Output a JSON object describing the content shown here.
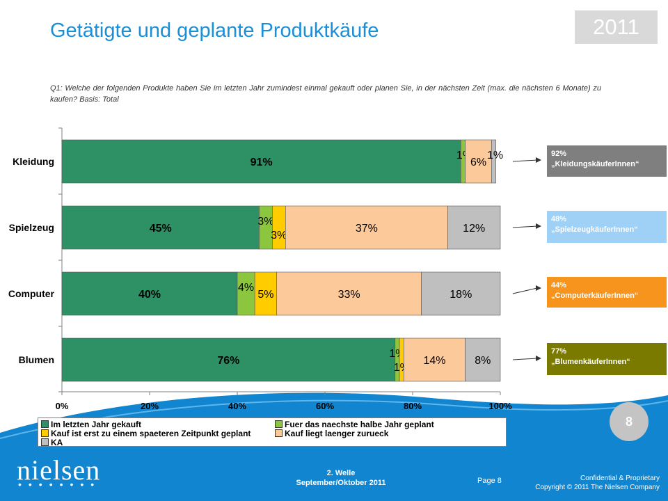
{
  "header": {
    "title": "Getätigte und geplante Produktkäufe",
    "year": "2011",
    "question": "Q1: Welche der folgenden Produkte haben Sie im letzten Jahr zumindest einmal gekauft oder planen Sie, in der nächsten Zeit (max. die nächsten 6 Monate) zu kaufen? Basis: Total"
  },
  "chart_data": {
    "type": "bar",
    "orientation": "horizontal",
    "stacked": true,
    "categories": [
      "Kleidung",
      "Spielzeug",
      "Computer",
      "Blumen"
    ],
    "series": [
      {
        "name": "Im letzten Jahr gekauft",
        "color": "#2e9166",
        "values": [
          91,
          45,
          40,
          76
        ],
        "labels": [
          "91%",
          "45%",
          "40%",
          "76%"
        ]
      },
      {
        "name": "Fuer das naechste  halbe Jahr geplant",
        "color": "#8cc63f",
        "values": [
          1,
          3,
          4,
          1
        ],
        "labels": [
          "1%",
          "3%",
          "4%",
          "1%"
        ]
      },
      {
        "name": "Kauf ist erst zu einem spaeteren Zeitpunkt geplant",
        "color": "#ffcc00",
        "values": [
          0,
          3,
          5,
          1
        ],
        "labels": [
          "",
          "3%",
          "5%",
          "1%"
        ]
      },
      {
        "name": "Kauf liegt laenger zurueck",
        "color": "#fcc99a",
        "values": [
          6,
          37,
          33,
          14
        ],
        "labels": [
          "6%",
          "37%",
          "33%",
          "14%"
        ]
      },
      {
        "name": "KA",
        "color": "#bfbfbf",
        "values": [
          1,
          12,
          18,
          8
        ],
        "labels": [
          "1%",
          "12%",
          "18%",
          "8%"
        ]
      }
    ],
    "xlim": [
      0,
      100
    ],
    "x_ticks": [
      "0%",
      "20%",
      "40%",
      "60%",
      "80%",
      "100%"
    ],
    "legend_position": "bottom"
  },
  "callouts": [
    {
      "pct": "92%",
      "label": "„KleidungskäuferInnen“",
      "color": "#7f7f7f"
    },
    {
      "pct": "48%",
      "label": "„SpielzeugkäuferInnen“",
      "color": "#9fd0f5"
    },
    {
      "pct": "44%",
      "label": "„ComputerkäuferInnen“",
      "color": "#f7941d"
    },
    {
      "pct": "77%",
      "label": "„BlumenkäuferInnen“",
      "color": "#7a7a00"
    }
  ],
  "footer": {
    "page_circle": "8",
    "logo": "nielsen",
    "wave_line1": "2. Welle",
    "wave_line2": "September/Oktober  2011",
    "page_label": "Page 8",
    "confidential": "Confidential & Proprietary",
    "copyright": "Copyright © 2011 The Nielsen Company"
  },
  "colors": {
    "title_blue": "#1a8fd8",
    "footer_blue": "#1185d0"
  }
}
